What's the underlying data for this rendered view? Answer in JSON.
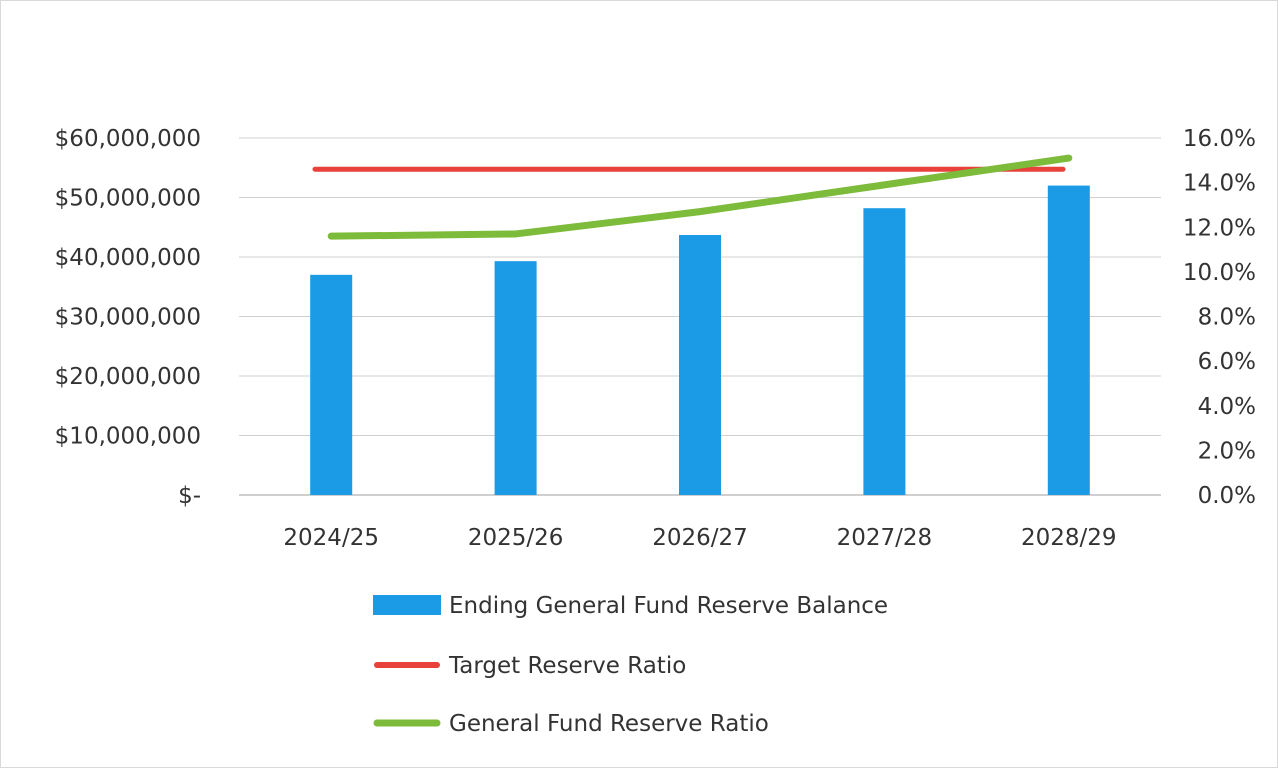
{
  "chart_data": {
    "type": "bar",
    "title": "",
    "xlabel": "",
    "ylabel": "",
    "categories": [
      "2024/25",
      "2025/26",
      "2026/27",
      "2027/28",
      "2028/29"
    ],
    "series": [
      {
        "name": "Ending General Fund Reserve Balance",
        "type": "bar",
        "axis": "left",
        "color": "#1b9be6",
        "values": [
          37000000,
          39300000,
          43700000,
          48200000,
          52000000
        ]
      },
      {
        "name": "Target Reserve Ratio",
        "type": "line",
        "axis": "right",
        "color": "#e8403a",
        "values": [
          14.6,
          14.6,
          14.6,
          14.6,
          14.6
        ]
      },
      {
        "name": "General Fund Reserve Ratio",
        "type": "line",
        "axis": "right",
        "color": "#7dbb3a",
        "values": [
          11.6,
          11.7,
          12.7,
          13.9,
          15.1
        ]
      }
    ],
    "ylim": [
      0,
      60000000
    ],
    "y_ticks": [
      "$-",
      "$10,000,000",
      "$20,000,000",
      "$30,000,000",
      "$40,000,000",
      "$50,000,000",
      "$60,000,000"
    ],
    "y2lim": [
      0,
      16
    ],
    "y2_ticks": [
      "0.0%",
      "2.0%",
      "4.0%",
      "6.0%",
      "8.0%",
      "10.0%",
      "12.0%",
      "14.0%",
      "16.0%"
    ],
    "grid": true,
    "legend_position": "bottom"
  }
}
